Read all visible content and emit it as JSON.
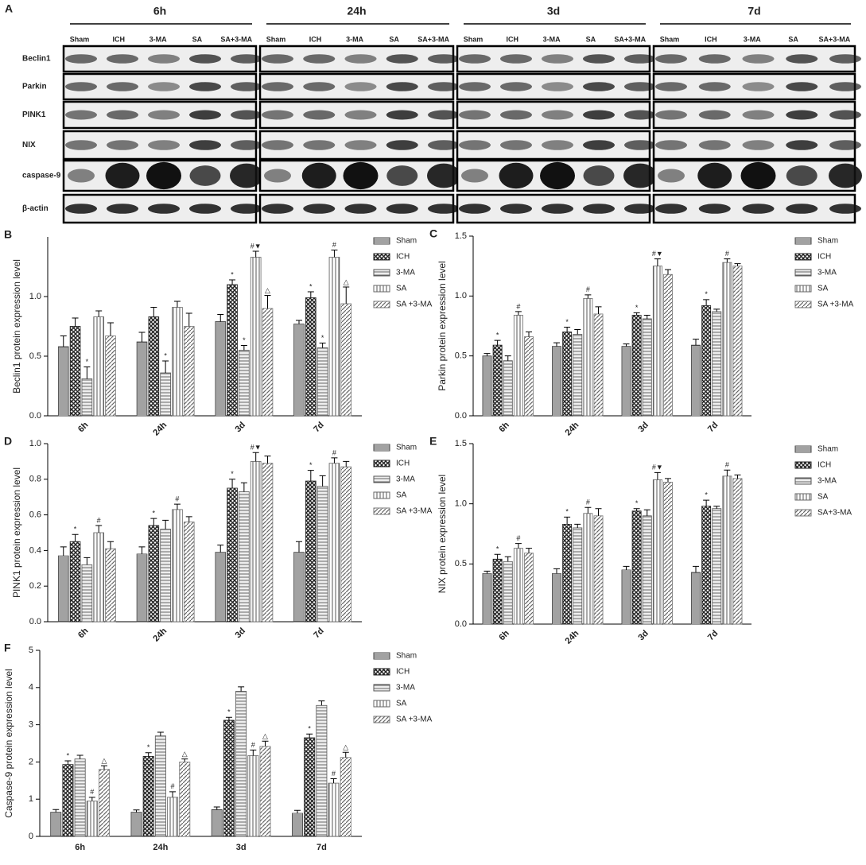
{
  "blot": {
    "panel": "A",
    "times": [
      "6h",
      "24h",
      "3d",
      "7d"
    ],
    "lanes": [
      "Sham",
      "ICH",
      "3-MA",
      "SA",
      "SA+3-MA"
    ],
    "proteins": [
      "Beclin1",
      "Parkin",
      "PINK1",
      "NIX",
      "caspase-9",
      "β-actin"
    ]
  },
  "chart_data": [
    {
      "type": "bar",
      "panel": "B",
      "y_label": "Beclin1 protein expression level",
      "categories": [
        "6h",
        "24h",
        "3d",
        "7d"
      ],
      "ylim": [
        0,
        1.5
      ],
      "yticks": [
        {
          "value": 0,
          "label": "0.0"
        },
        {
          "value": 0.5,
          "label": "0.5"
        },
        {
          "value": 1,
          "label": "1.0"
        }
      ],
      "series": [
        {
          "name": "Sham",
          "color": "#444",
          "values": [
            0.58,
            0.62,
            0.79,
            0.77
          ],
          "errors": [
            0.09,
            0.08,
            0.06,
            0.03
          ],
          "marks": [
            null,
            null,
            null,
            null
          ]
        },
        {
          "name": "ICH",
          "color": "#222",
          "values": [
            0.75,
            0.83,
            1.1,
            0.99
          ],
          "errors": [
            0.07,
            0.08,
            0.04,
            0.05
          ],
          "marks": [
            null,
            null,
            "*",
            "*"
          ]
        },
        {
          "name": "3-MA",
          "color": "#555",
          "values": [
            0.31,
            0.36,
            0.55,
            0.57
          ],
          "errors": [
            0.1,
            0.1,
            0.04,
            0.04
          ],
          "marks": [
            "*",
            "*",
            "*",
            "*"
          ]
        },
        {
          "name": "SA",
          "color": "#666",
          "values": [
            0.83,
            0.91,
            1.33,
            1.33
          ],
          "errors": [
            0.05,
            0.05,
            0.05,
            0.06
          ],
          "marks": [
            null,
            null,
            "#▼",
            "#"
          ]
        },
        {
          "name": "SA +3-MA",
          "color": "#777",
          "values": [
            0.67,
            0.75,
            0.9,
            0.94
          ],
          "errors": [
            0.11,
            0.11,
            0.11,
            0.14
          ],
          "marks": [
            null,
            null,
            "△",
            "△"
          ]
        }
      ]
    },
    {
      "type": "bar",
      "panel": "C",
      "y_label": "Parkin protein expression level",
      "categories": [
        "6h",
        "24h",
        "3d",
        "7d"
      ],
      "ylim": [
        0,
        1.5
      ],
      "yticks": [
        {
          "value": 0,
          "label": "0.0"
        },
        {
          "value": 0.5,
          "label": "0.5"
        },
        {
          "value": 1,
          "label": "1.0"
        },
        {
          "value": 1.5,
          "label": "1.5"
        }
      ],
      "series": [
        {
          "name": "Sham",
          "color": "#444",
          "values": [
            0.5,
            0.58,
            0.58,
            0.59
          ],
          "errors": [
            0.02,
            0.03,
            0.02,
            0.05
          ],
          "marks": [
            null,
            null,
            null,
            null
          ]
        },
        {
          "name": "ICH",
          "color": "#222",
          "values": [
            0.59,
            0.7,
            0.84,
            0.92
          ],
          "errors": [
            0.04,
            0.04,
            0.02,
            0.05
          ],
          "marks": [
            "*",
            "*",
            "*",
            "*"
          ]
        },
        {
          "name": "3-MA",
          "color": "#555",
          "values": [
            0.46,
            0.68,
            0.81,
            0.87
          ],
          "errors": [
            0.04,
            0.04,
            0.03,
            0.02
          ],
          "marks": [
            null,
            null,
            null,
            null
          ]
        },
        {
          "name": "SA",
          "color": "#666",
          "values": [
            0.84,
            0.98,
            1.25,
            1.28
          ],
          "errors": [
            0.03,
            0.03,
            0.06,
            0.03
          ],
          "marks": [
            "#",
            "#",
            "#▼",
            "#"
          ]
        },
        {
          "name": "SA +3-MA",
          "color": "#777",
          "values": [
            0.66,
            0.85,
            1.18,
            1.25
          ],
          "errors": [
            0.04,
            0.06,
            0.04,
            0.02
          ],
          "marks": [
            null,
            null,
            null,
            null
          ]
        }
      ]
    },
    {
      "type": "bar",
      "panel": "D",
      "y_label": "PINK1 protein expression level",
      "categories": [
        "6h",
        "24h",
        "3d",
        "7d"
      ],
      "ylim": [
        0,
        1
      ],
      "yticks": [
        {
          "value": 0,
          "label": "0.0"
        },
        {
          "value": 0.2,
          "label": "0.2"
        },
        {
          "value": 0.4,
          "label": "0.4"
        },
        {
          "value": 0.6,
          "label": "0.6"
        },
        {
          "value": 0.8,
          "label": "0.8"
        },
        {
          "value": 1,
          "label": "1.0"
        }
      ],
      "series": [
        {
          "name": "Sham",
          "color": "#444",
          "values": [
            0.37,
            0.38,
            0.39,
            0.39
          ],
          "errors": [
            0.05,
            0.04,
            0.04,
            0.06
          ],
          "marks": [
            null,
            null,
            null,
            null
          ]
        },
        {
          "name": "ICH",
          "color": "#222",
          "values": [
            0.45,
            0.54,
            0.75,
            0.79
          ],
          "errors": [
            0.04,
            0.04,
            0.05,
            0.06
          ],
          "marks": [
            "*",
            "*",
            "*",
            "*"
          ]
        },
        {
          "name": "3-MA",
          "color": "#555",
          "values": [
            0.32,
            0.52,
            0.73,
            0.76
          ],
          "errors": [
            0.04,
            0.05,
            0.05,
            0.06
          ],
          "marks": [
            null,
            null,
            null,
            null
          ]
        },
        {
          "name": "SA",
          "color": "#666",
          "values": [
            0.5,
            0.63,
            0.9,
            0.89
          ],
          "errors": [
            0.04,
            0.03,
            0.05,
            0.03
          ],
          "marks": [
            "#",
            "#",
            "#▼",
            "#"
          ]
        },
        {
          "name": "SA +3-MA",
          "color": "#777",
          "values": [
            0.41,
            0.56,
            0.89,
            0.87
          ],
          "errors": [
            0.04,
            0.03,
            0.04,
            0.03
          ],
          "marks": [
            null,
            null,
            null,
            null
          ]
        }
      ]
    },
    {
      "type": "bar",
      "panel": "E",
      "y_label": "NIX protein expression level",
      "categories": [
        "6h",
        "24h",
        "3d",
        "7d"
      ],
      "ylim": [
        0,
        1.5
      ],
      "yticks": [
        {
          "value": 0,
          "label": "0.0"
        },
        {
          "value": 0.5,
          "label": "0.5"
        },
        {
          "value": 1,
          "label": "1.0"
        },
        {
          "value": 1.5,
          "label": "1.5"
        }
      ],
      "series": [
        {
          "name": "Sham",
          "color": "#444",
          "values": [
            0.42,
            0.42,
            0.45,
            0.43
          ],
          "errors": [
            0.02,
            0.04,
            0.03,
            0.05
          ],
          "marks": [
            null,
            null,
            null,
            null
          ]
        },
        {
          "name": "ICH",
          "color": "#222",
          "values": [
            0.54,
            0.83,
            0.94,
            0.98
          ],
          "errors": [
            0.04,
            0.06,
            0.02,
            0.05
          ],
          "marks": [
            "*",
            "*",
            "*",
            "*"
          ]
        },
        {
          "name": "3-MA",
          "color": "#555",
          "values": [
            0.52,
            0.8,
            0.9,
            0.96
          ],
          "errors": [
            0.04,
            0.03,
            0.05,
            0.02
          ],
          "marks": [
            null,
            null,
            null,
            null
          ]
        },
        {
          "name": "SA",
          "color": "#666",
          "values": [
            0.63,
            0.92,
            1.2,
            1.23
          ],
          "errors": [
            0.04,
            0.05,
            0.06,
            0.05
          ],
          "marks": [
            "#",
            "#",
            "#▼",
            "#"
          ]
        },
        {
          "name": "SA+3-MA",
          "color": "#777",
          "values": [
            0.59,
            0.9,
            1.18,
            1.21
          ],
          "errors": [
            0.04,
            0.06,
            0.03,
            0.03
          ],
          "marks": [
            null,
            null,
            null,
            null
          ]
        }
      ]
    },
    {
      "type": "bar",
      "panel": "F",
      "y_label": "Caspase-9 protein expression level",
      "categories": [
        "6h",
        "24h",
        "3d",
        "7d"
      ],
      "ylim": [
        0,
        5
      ],
      "yticks": [
        0,
        1,
        2,
        3,
        4,
        5
      ],
      "series": [
        {
          "name": "Sham",
          "color": "#444",
          "values": [
            0.65,
            0.65,
            0.72,
            0.62
          ],
          "errors": [
            0.07,
            0.06,
            0.07,
            0.08
          ],
          "marks": [
            null,
            null,
            null,
            null
          ]
        },
        {
          "name": "ICH",
          "color": "#222",
          "values": [
            1.93,
            2.15,
            3.12,
            2.65
          ],
          "errors": [
            0.1,
            0.1,
            0.08,
            0.1
          ],
          "marks": [
            "*",
            "*",
            "*",
            "*"
          ]
        },
        {
          "name": "3-MA",
          "color": "#555",
          "values": [
            2.08,
            2.7,
            3.9,
            3.52
          ],
          "errors": [
            0.1,
            0.1,
            0.12,
            0.12
          ],
          "marks": [
            null,
            null,
            null,
            null
          ]
        },
        {
          "name": "SA",
          "color": "#666",
          "values": [
            0.95,
            1.05,
            2.17,
            1.43
          ],
          "errors": [
            0.1,
            0.15,
            0.15,
            0.12
          ],
          "marks": [
            "#",
            "#",
            "#",
            "#"
          ]
        },
        {
          "name": "SA +3-MA",
          "color": "#777",
          "values": [
            1.8,
            2.0,
            2.42,
            2.12
          ],
          "errors": [
            0.1,
            0.08,
            0.14,
            0.14
          ],
          "marks": [
            "△",
            "△",
            "△",
            "△"
          ]
        }
      ]
    }
  ]
}
